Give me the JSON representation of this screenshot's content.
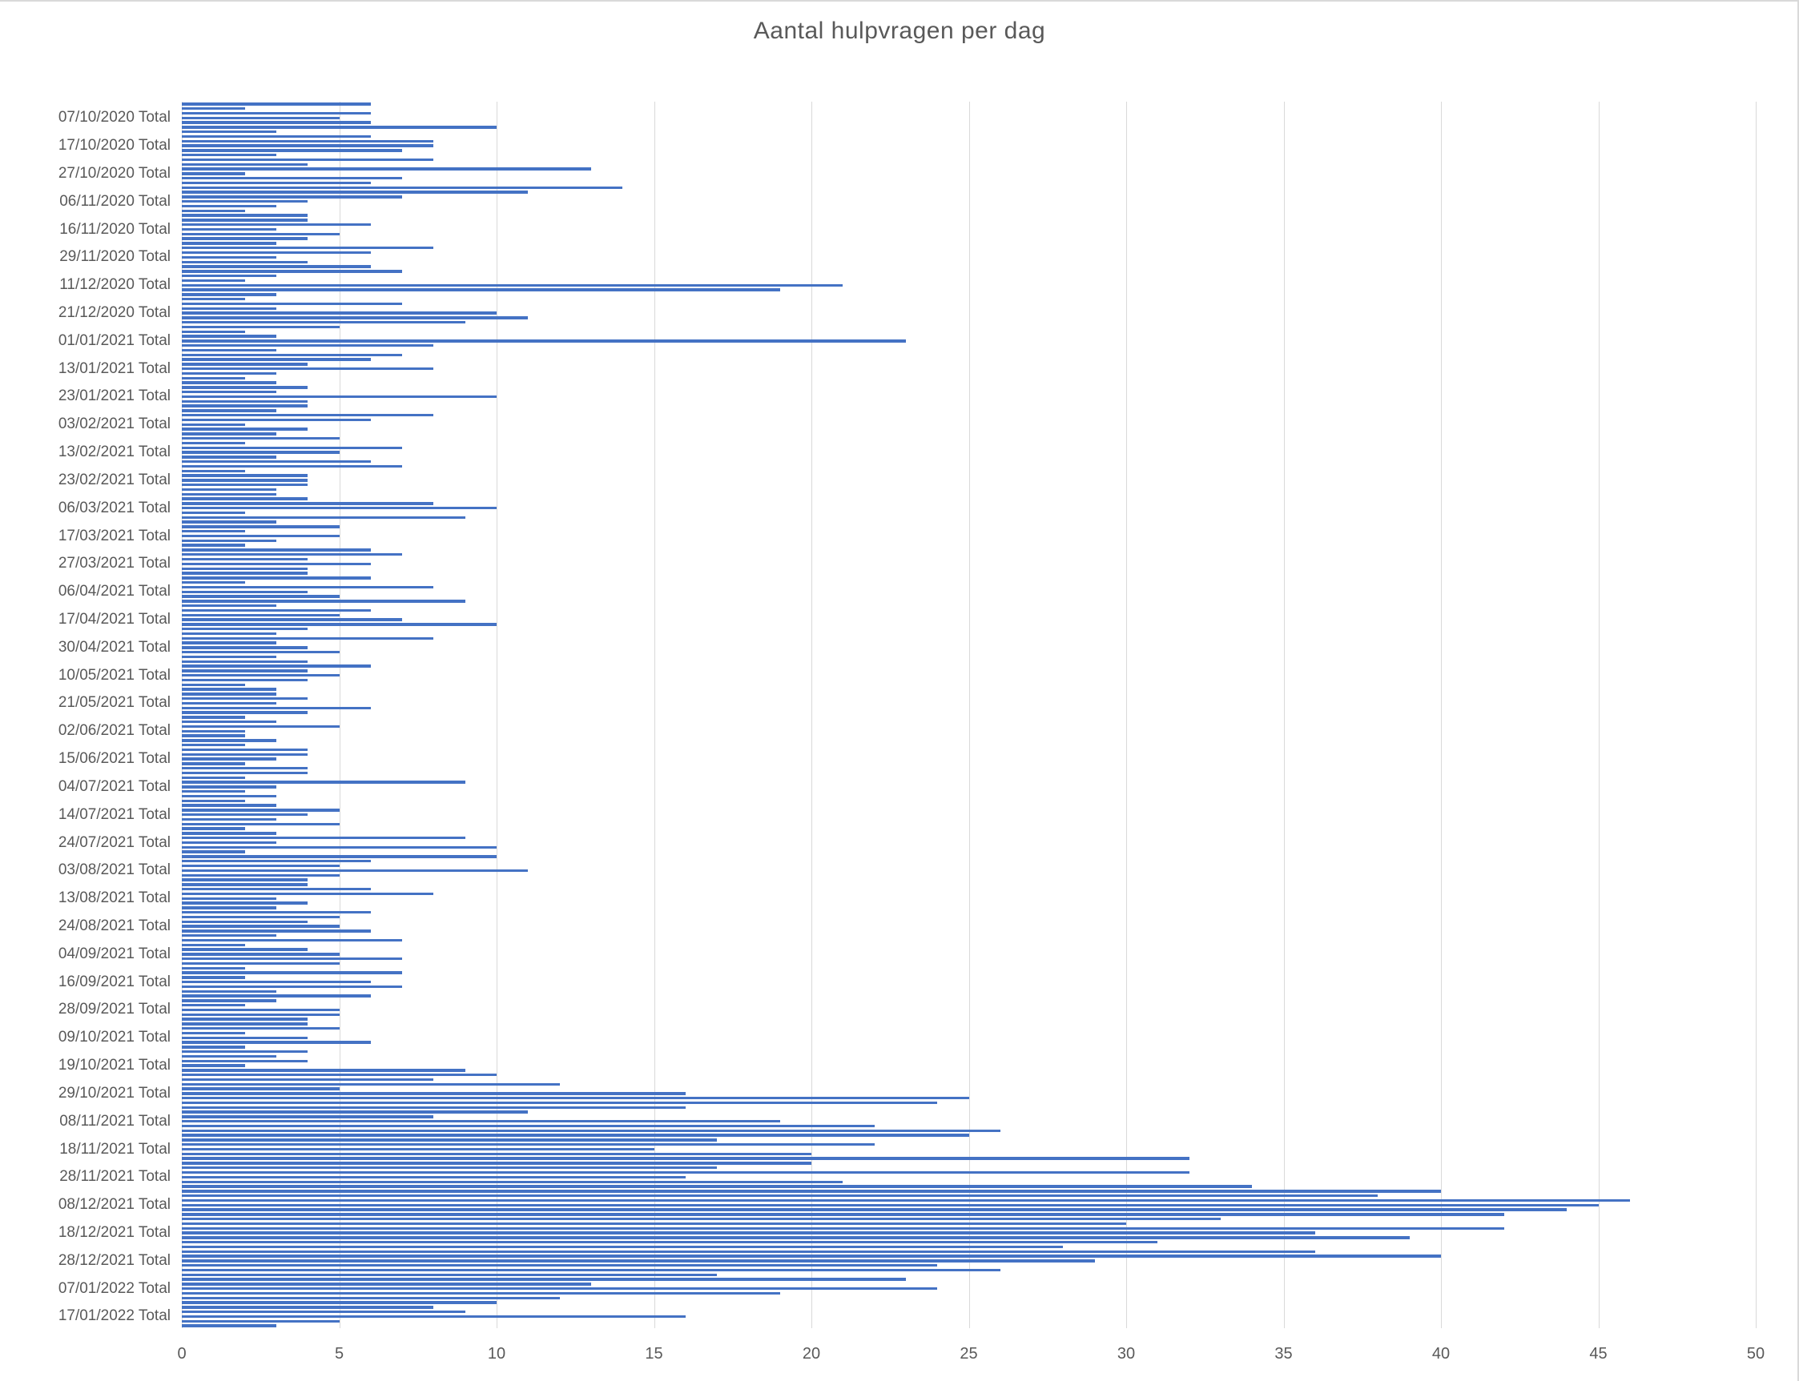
{
  "title": "Aantal hulpvragen per dag",
  "chart_data": {
    "type": "bar",
    "orientation": "horizontal",
    "title": "Aantal hulpvragen per dag",
    "xlabel": "",
    "ylabel": "",
    "xlim": [
      0,
      50
    ],
    "x_ticks": [
      0,
      5,
      10,
      15,
      20,
      25,
      30,
      35,
      40,
      45,
      50
    ],
    "grid": true,
    "legend": false,
    "bar_color": "#4472C4",
    "gridline_color": "#D9D9D9",
    "text_color": "#595959",
    "rows_per_label": 6,
    "label_row_offset": 3,
    "categories": [
      "07/10/2020 Total",
      "17/10/2020 Total",
      "27/10/2020 Total",
      "06/11/2020 Total",
      "16/11/2020 Total",
      "29/11/2020 Total",
      "11/12/2020 Total",
      "21/12/2020 Total",
      "01/01/2021 Total",
      "13/01/2021 Total",
      "23/01/2021 Total",
      "03/02/2021 Total",
      "13/02/2021 Total",
      "23/02/2021 Total",
      "06/03/2021 Total",
      "17/03/2021 Total",
      "27/03/2021 Total",
      "06/04/2021 Total",
      "17/04/2021 Total",
      "30/04/2021 Total",
      "10/05/2021 Total",
      "21/05/2021 Total",
      "02/06/2021 Total",
      "15/06/2021 Total",
      "04/07/2021 Total",
      "14/07/2021 Total",
      "24/07/2021 Total",
      "03/08/2021 Total",
      "13/08/2021 Total",
      "24/08/2021 Total",
      "04/09/2021 Total",
      "16/09/2021 Total",
      "28/09/2021 Total",
      "09/10/2021 Total",
      "19/10/2021 Total",
      "29/10/2021 Total",
      "08/11/2021 Total",
      "18/11/2021 Total",
      "28/11/2021 Total",
      "08/12/2021 Total",
      "18/12/2021 Total",
      "28/12/2021 Total",
      "07/01/2022 Total",
      "17/01/2022 Total"
    ],
    "values": [
      6,
      2,
      6,
      5,
      6,
      10,
      3,
      6,
      8,
      8,
      7,
      3,
      8,
      4,
      13,
      2,
      7,
      6,
      14,
      11,
      7,
      4,
      3,
      2,
      4,
      4,
      6,
      3,
      5,
      4,
      3,
      8,
      6,
      3,
      4,
      6,
      7,
      3,
      2,
      21,
      19,
      3,
      2,
      7,
      3,
      10,
      11,
      9,
      5,
      2,
      3,
      23,
      8,
      3,
      7,
      6,
      4,
      8,
      3,
      2,
      3,
      4,
      3,
      10,
      4,
      4,
      3,
      8,
      6,
      2,
      4,
      3,
      5,
      2,
      7,
      5,
      3,
      6,
      7,
      2,
      4,
      4,
      4,
      3,
      3,
      4,
      8,
      10,
      2,
      9,
      3,
      5,
      2,
      5,
      3,
      2,
      6,
      7,
      4,
      6,
      4,
      4,
      6,
      2,
      8,
      4,
      5,
      9,
      3,
      6,
      5,
      7,
      10,
      4,
      3,
      8,
      3,
      4,
      5,
      3,
      4,
      6,
      4,
      5,
      4,
      2,
      3,
      3,
      4,
      3,
      6,
      4,
      2,
      3,
      5,
      2,
      2,
      3,
      2,
      4,
      4,
      3,
      2,
      4,
      4,
      2,
      9,
      3,
      2,
      3,
      2,
      3,
      5,
      4,
      3,
      5,
      2,
      3,
      9,
      3,
      10,
      2,
      10,
      6,
      5,
      11,
      5,
      4,
      4,
      6,
      8,
      3,
      4,
      3,
      6,
      5,
      4,
      5,
      6,
      3,
      7,
      2,
      4,
      5,
      7,
      5,
      2,
      7,
      2,
      6,
      7,
      3,
      6,
      3,
      2,
      5,
      5,
      4,
      4,
      5,
      2,
      4,
      6,
      2,
      4,
      3,
      4,
      2,
      9,
      10,
      8,
      12,
      5,
      16,
      25,
      24,
      16,
      11,
      8,
      19,
      22,
      26,
      25,
      17,
      22,
      15,
      20,
      32,
      20,
      17,
      32,
      16,
      21,
      34,
      40,
      38,
      46,
      45,
      44,
      42,
      33,
      30,
      42,
      36,
      39,
      31,
      28,
      36,
      40,
      29,
      24,
      26,
      17,
      23,
      13,
      24,
      19,
      12,
      10,
      8,
      9,
      16,
      5,
      3
    ]
  }
}
